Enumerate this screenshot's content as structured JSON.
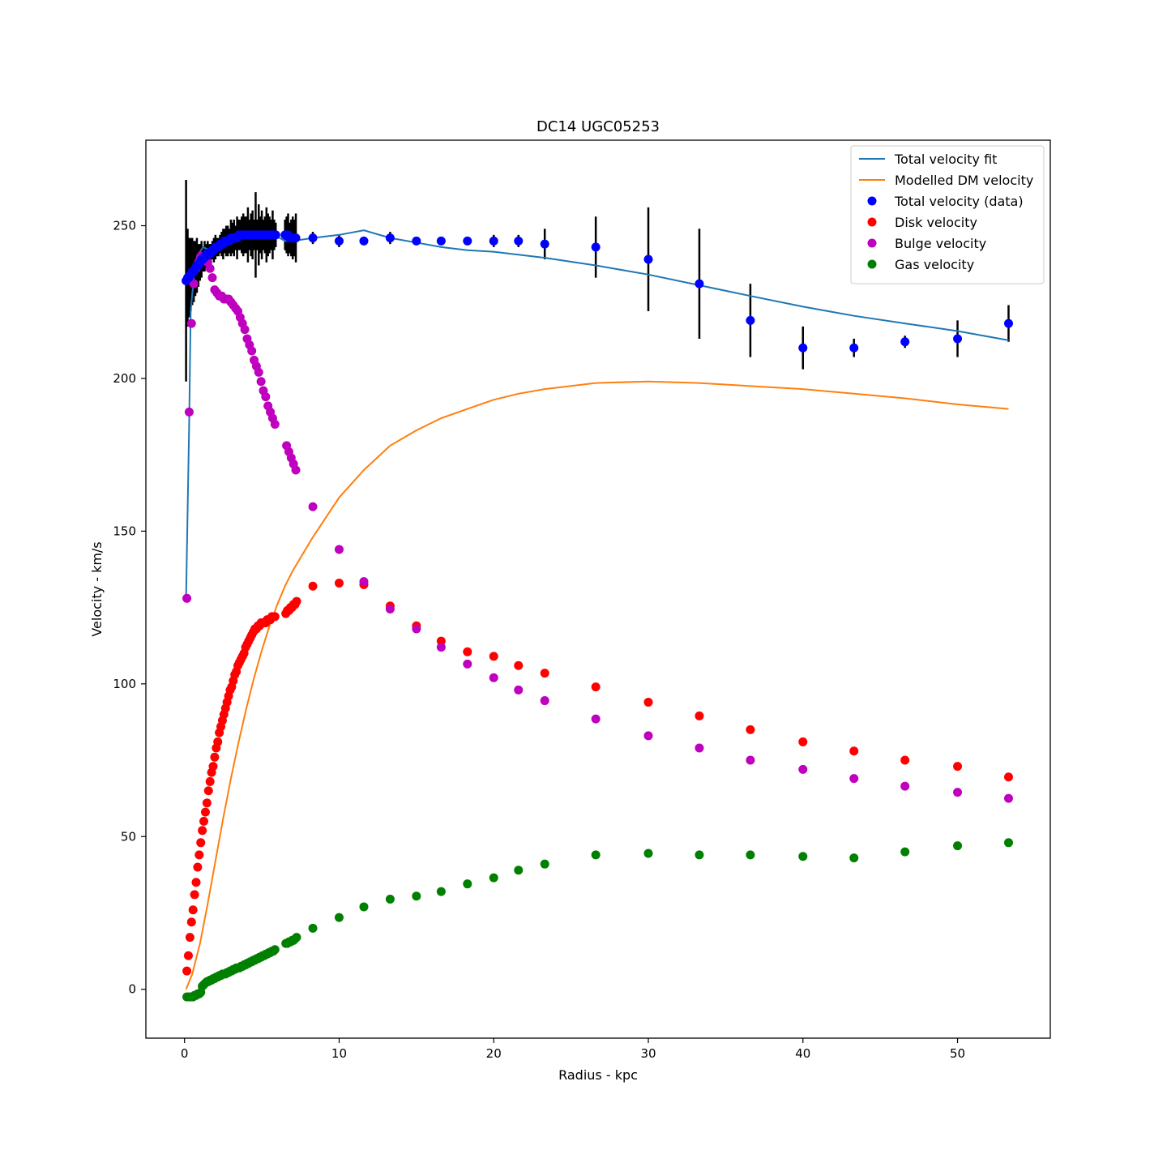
{
  "chart_data": {
    "type": "scatter",
    "title": "DC14 UGC05253",
    "xlabel": "Radius - kpc",
    "ylabel": "Velocity - km/s",
    "xlim": [
      -2.5,
      56
    ],
    "ylim": [
      -16,
      278
    ],
    "xticks": [
      0,
      10,
      20,
      30,
      40,
      50
    ],
    "yticks": [
      0,
      50,
      100,
      150,
      200,
      250
    ],
    "grid": false,
    "legend_position": "top-right",
    "colors": {
      "fit": "#1f77b4",
      "dm": "#ff7f0e",
      "total": "#0000ff",
      "disk": "#ff0000",
      "bulge": "#bf00bf",
      "gas": "#008000",
      "errorbar": "#000000"
    },
    "legend": [
      {
        "label": "Total velocity fit",
        "kind": "line",
        "series": "fit"
      },
      {
        "label": "Modelled DM velocity",
        "kind": "line",
        "series": "dm"
      },
      {
        "label": "Total velocity (data)",
        "kind": "marker",
        "series": "total"
      },
      {
        "label": "Disk velocity",
        "kind": "marker",
        "series": "disk"
      },
      {
        "label": "Bulge velocity",
        "kind": "marker",
        "series": "bulge"
      },
      {
        "label": "Gas velocity",
        "kind": "marker",
        "series": "gas"
      }
    ],
    "series": [
      {
        "key": "fit",
        "name": "Total velocity fit",
        "kind": "line",
        "color": "#1f77b4",
        "x": [
          0.1,
          0.3,
          0.4,
          0.6,
          0.8,
          1.2,
          1.6,
          2.2,
          2.8,
          3.4,
          4.0,
          4.6,
          5.2,
          5.8,
          6.5,
          7.0,
          8.3,
          10.0,
          11.6,
          13.3,
          15.0,
          16.6,
          18.3,
          20.0,
          21.6,
          23.3,
          26.6,
          30.0,
          33.3,
          36.6,
          40.0,
          43.3,
          46.6,
          50.0,
          53.3
        ],
        "y": [
          128,
          185,
          222,
          233,
          240,
          243,
          242,
          243,
          245,
          247,
          248,
          248,
          248,
          247,
          245,
          245,
          246,
          247,
          248.5,
          246,
          244.5,
          243,
          242,
          241.5,
          240.5,
          239.5,
          237,
          234,
          230.5,
          227,
          223.5,
          220.5,
          218,
          215.5,
          212.5
        ]
      },
      {
        "key": "dm",
        "name": "Modelled DM velocity",
        "kind": "line",
        "color": "#ff7f0e",
        "x": [
          0.1,
          0.5,
          1.0,
          1.5,
          2.0,
          2.5,
          3.0,
          3.5,
          4.0,
          4.5,
          5.0,
          5.5,
          6.0,
          6.5,
          7.0,
          8.3,
          10.0,
          11.6,
          13.3,
          15.0,
          16.6,
          18.3,
          20.0,
          21.6,
          23.3,
          26.6,
          30.0,
          33.3,
          36.6,
          40.0,
          43.3,
          46.6,
          50.0,
          53.3
        ],
        "y": [
          0,
          5,
          15,
          28,
          42,
          56,
          69,
          81,
          92,
          102,
          111,
          119,
          126,
          132,
          137,
          148,
          161,
          170,
          178,
          183,
          187,
          190,
          193,
          195,
          196.5,
          198.5,
          199,
          198.5,
          197.5,
          196.5,
          195,
          193.5,
          191.5,
          190
        ]
      },
      {
        "key": "total",
        "name": "Total velocity (data)",
        "kind": "scatter",
        "color": "#0000ff",
        "x": [
          0.1,
          0.2,
          0.3,
          0.4,
          0.5,
          0.6,
          0.7,
          0.8,
          0.9,
          1.0,
          1.1,
          1.2,
          1.3,
          1.4,
          1.5,
          1.6,
          1.7,
          1.8,
          1.9,
          2.0,
          2.1,
          2.2,
          2.3,
          2.4,
          2.5,
          2.6,
          2.7,
          2.8,
          2.9,
          3.0,
          3.1,
          3.2,
          3.3,
          3.4,
          3.5,
          3.6,
          3.7,
          3.8,
          3.9,
          4.0,
          4.1,
          4.2,
          4.3,
          4.4,
          4.5,
          4.6,
          4.7,
          4.8,
          4.9,
          5.0,
          5.1,
          5.2,
          5.3,
          5.4,
          5.5,
          5.6,
          5.7,
          5.8,
          5.9,
          6.5,
          6.6,
          6.7,
          6.8,
          6.9,
          7.0,
          7.1,
          7.2,
          8.3,
          10.0,
          11.6,
          13.3,
          15.0,
          16.6,
          18.3,
          20.0,
          21.6,
          23.3,
          26.6,
          30.0,
          33.3,
          36.6,
          40.0,
          43.3,
          46.6,
          50.0,
          53.3
        ],
        "y": [
          232,
          233,
          233,
          234,
          235,
          235,
          236,
          237,
          237,
          238,
          239,
          239,
          240,
          240,
          241,
          241,
          241,
          242,
          242,
          243,
          243,
          243,
          244,
          244,
          244,
          245,
          245,
          245,
          245,
          246,
          246,
          246,
          246,
          246,
          247,
          247,
          247,
          247,
          247,
          247,
          247,
          247,
          247,
          247,
          247,
          247,
          247,
          247,
          247,
          247,
          247,
          247,
          247,
          247,
          247,
          247,
          247,
          247,
          247,
          247,
          247,
          247,
          246,
          246,
          246,
          246,
          246,
          246,
          245,
          245,
          246,
          245,
          245,
          245,
          245,
          245,
          244,
          243,
          239,
          231,
          219,
          210,
          210,
          212,
          213,
          218
        ],
        "err": [
          33,
          16,
          13,
          12,
          11,
          10,
          9,
          9,
          7,
          6,
          6,
          4,
          5,
          4,
          4,
          3,
          3,
          3,
          4,
          4,
          3,
          3,
          3,
          4,
          5,
          4,
          5,
          5,
          4,
          6,
          5,
          6,
          4,
          7,
          5,
          5,
          6,
          7,
          6,
          6,
          9,
          5,
          7,
          8,
          5,
          14,
          5,
          10,
          6,
          8,
          5,
          6,
          9,
          7,
          6,
          5,
          8,
          5,
          4,
          5,
          6,
          7,
          5,
          6,
          7,
          6,
          8,
          2,
          2,
          1,
          2,
          1,
          1,
          1,
          2,
          2,
          5,
          10,
          17,
          18,
          12,
          7,
          3,
          2,
          6,
          6
        ]
      },
      {
        "key": "disk",
        "name": "Disk velocity",
        "kind": "scatter",
        "color": "#ff0000",
        "x": [
          0.15,
          0.25,
          0.35,
          0.45,
          0.55,
          0.65,
          0.75,
          0.85,
          0.95,
          1.05,
          1.15,
          1.25,
          1.35,
          1.45,
          1.55,
          1.65,
          1.75,
          1.85,
          1.95,
          2.05,
          2.15,
          2.25,
          2.35,
          2.45,
          2.55,
          2.65,
          2.75,
          2.85,
          2.95,
          3.05,
          3.15,
          3.25,
          3.35,
          3.45,
          3.55,
          3.65,
          3.75,
          3.85,
          3.95,
          4.05,
          4.15,
          4.25,
          4.35,
          4.45,
          4.55,
          4.65,
          4.75,
          4.85,
          4.95,
          5.05,
          5.15,
          5.25,
          5.35,
          5.45,
          5.55,
          5.65,
          5.75,
          5.85,
          6.55,
          6.65,
          6.75,
          6.85,
          6.95,
          7.05,
          7.15,
          7.25,
          8.3,
          10.0,
          11.6,
          13.3,
          15.0,
          16.6,
          18.3,
          20.0,
          21.6,
          23.3,
          26.6,
          30.0,
          33.3,
          36.6,
          40.0,
          43.3,
          46.6,
          50.0,
          53.3
        ],
        "y": [
          6,
          11,
          17,
          22,
          26,
          31,
          35,
          40,
          44,
          48,
          52,
          55,
          58,
          61,
          65,
          68,
          71,
          73,
          76,
          79,
          81,
          84,
          86,
          88,
          90,
          92,
          94,
          96,
          98,
          99,
          101,
          103,
          104,
          106,
          107,
          108,
          109,
          110,
          112,
          113,
          114,
          115,
          116,
          117,
          118,
          118,
          119,
          119,
          120,
          120,
          120,
          120,
          121,
          121,
          121,
          122,
          122,
          122,
          123,
          124,
          124,
          125,
          125,
          126,
          126,
          127,
          132,
          133,
          132.5,
          125.5,
          119,
          114,
          110.5,
          109,
          106,
          103.5,
          99,
          94,
          89.5,
          85,
          81,
          78,
          75,
          73,
          69.5
        ]
      },
      {
        "key": "bulge",
        "name": "Bulge velocity",
        "kind": "scatter",
        "color": "#bf00bf",
        "x": [
          0.15,
          0.3,
          0.45,
          0.6,
          0.75,
          0.9,
          1.05,
          1.2,
          1.35,
          1.5,
          1.65,
          1.8,
          1.95,
          2.1,
          2.25,
          2.4,
          2.55,
          2.7,
          2.85,
          3.0,
          3.15,
          3.3,
          3.45,
          3.6,
          3.75,
          3.9,
          4.05,
          4.2,
          4.35,
          4.5,
          4.65,
          4.8,
          4.95,
          5.1,
          5.25,
          5.4,
          5.55,
          5.7,
          5.85,
          6.6,
          6.75,
          6.9,
          7.05,
          7.2,
          8.3,
          10.0,
          11.6,
          13.3,
          15.0,
          16.6,
          18.3,
          20.0,
          21.6,
          23.3,
          26.6,
          30.0,
          33.3,
          36.6,
          40.0,
          43.3,
          46.6,
          50.0,
          53.3
        ],
        "y": [
          128,
          189,
          218,
          231,
          236,
          238,
          240,
          240,
          239,
          238,
          236,
          233,
          229,
          228,
          227,
          227,
          226,
          226,
          226,
          225,
          224,
          223,
          222,
          220,
          218,
          216,
          213,
          211,
          209,
          206,
          204,
          202,
          199,
          196,
          194,
          191,
          189,
          187,
          185,
          178,
          176,
          174,
          172,
          170,
          158,
          144,
          133.5,
          124.5,
          118,
          112,
          106.5,
          102,
          98,
          94.5,
          88.5,
          83,
          79,
          75,
          72,
          69,
          66.5,
          64.5,
          62.5
        ]
      },
      {
        "key": "gas",
        "name": "Gas velocity",
        "kind": "scatter",
        "color": "#008000",
        "x": [
          0.15,
          0.25,
          0.35,
          0.45,
          0.55,
          0.65,
          0.75,
          0.85,
          0.95,
          1.05,
          1.15,
          1.25,
          1.35,
          1.45,
          1.55,
          1.65,
          1.75,
          1.85,
          1.95,
          2.05,
          2.15,
          2.25,
          2.35,
          2.45,
          2.55,
          2.65,
          2.75,
          2.85,
          2.95,
          3.05,
          3.15,
          3.25,
          3.35,
          3.45,
          3.55,
          3.65,
          3.75,
          3.85,
          3.95,
          4.05,
          4.15,
          4.25,
          4.35,
          4.45,
          4.55,
          4.65,
          4.75,
          4.85,
          4.95,
          5.05,
          5.15,
          5.25,
          5.35,
          5.45,
          5.55,
          5.65,
          5.75,
          5.85,
          6.55,
          6.65,
          6.75,
          6.85,
          6.95,
          7.05,
          7.15,
          7.25,
          8.3,
          10.0,
          11.6,
          13.3,
          15.0,
          16.6,
          18.3,
          20.0,
          21.6,
          23.3,
          26.6,
          30.0,
          33.3,
          36.6,
          40.0,
          43.3,
          46.6,
          50.0,
          53.3
        ],
        "y": [
          -2.5,
          -2.5,
          -2.5,
          -2.5,
          -2.5,
          -2,
          -2,
          -1.5,
          -1.5,
          -1,
          1,
          1.5,
          2,
          2.5,
          2.5,
          3,
          3,
          3.5,
          3.5,
          4,
          4,
          4.5,
          4.5,
          5,
          5,
          5,
          5.5,
          5.5,
          6,
          6,
          6.5,
          6.5,
          7,
          7,
          7,
          7.5,
          7.5,
          8,
          8,
          8.5,
          8.5,
          9,
          9,
          9.5,
          9.5,
          10,
          10,
          10.5,
          10.5,
          11,
          11,
          11.5,
          11.5,
          12,
          12,
          12.5,
          12.5,
          13,
          15,
          15,
          15.5,
          15.5,
          16,
          16,
          16.5,
          17,
          20,
          23.5,
          27,
          29.5,
          30.5,
          32,
          34.5,
          36.5,
          39,
          41,
          44,
          44.5,
          44,
          44,
          43.5,
          43,
          45,
          47,
          48
        ]
      }
    ]
  }
}
